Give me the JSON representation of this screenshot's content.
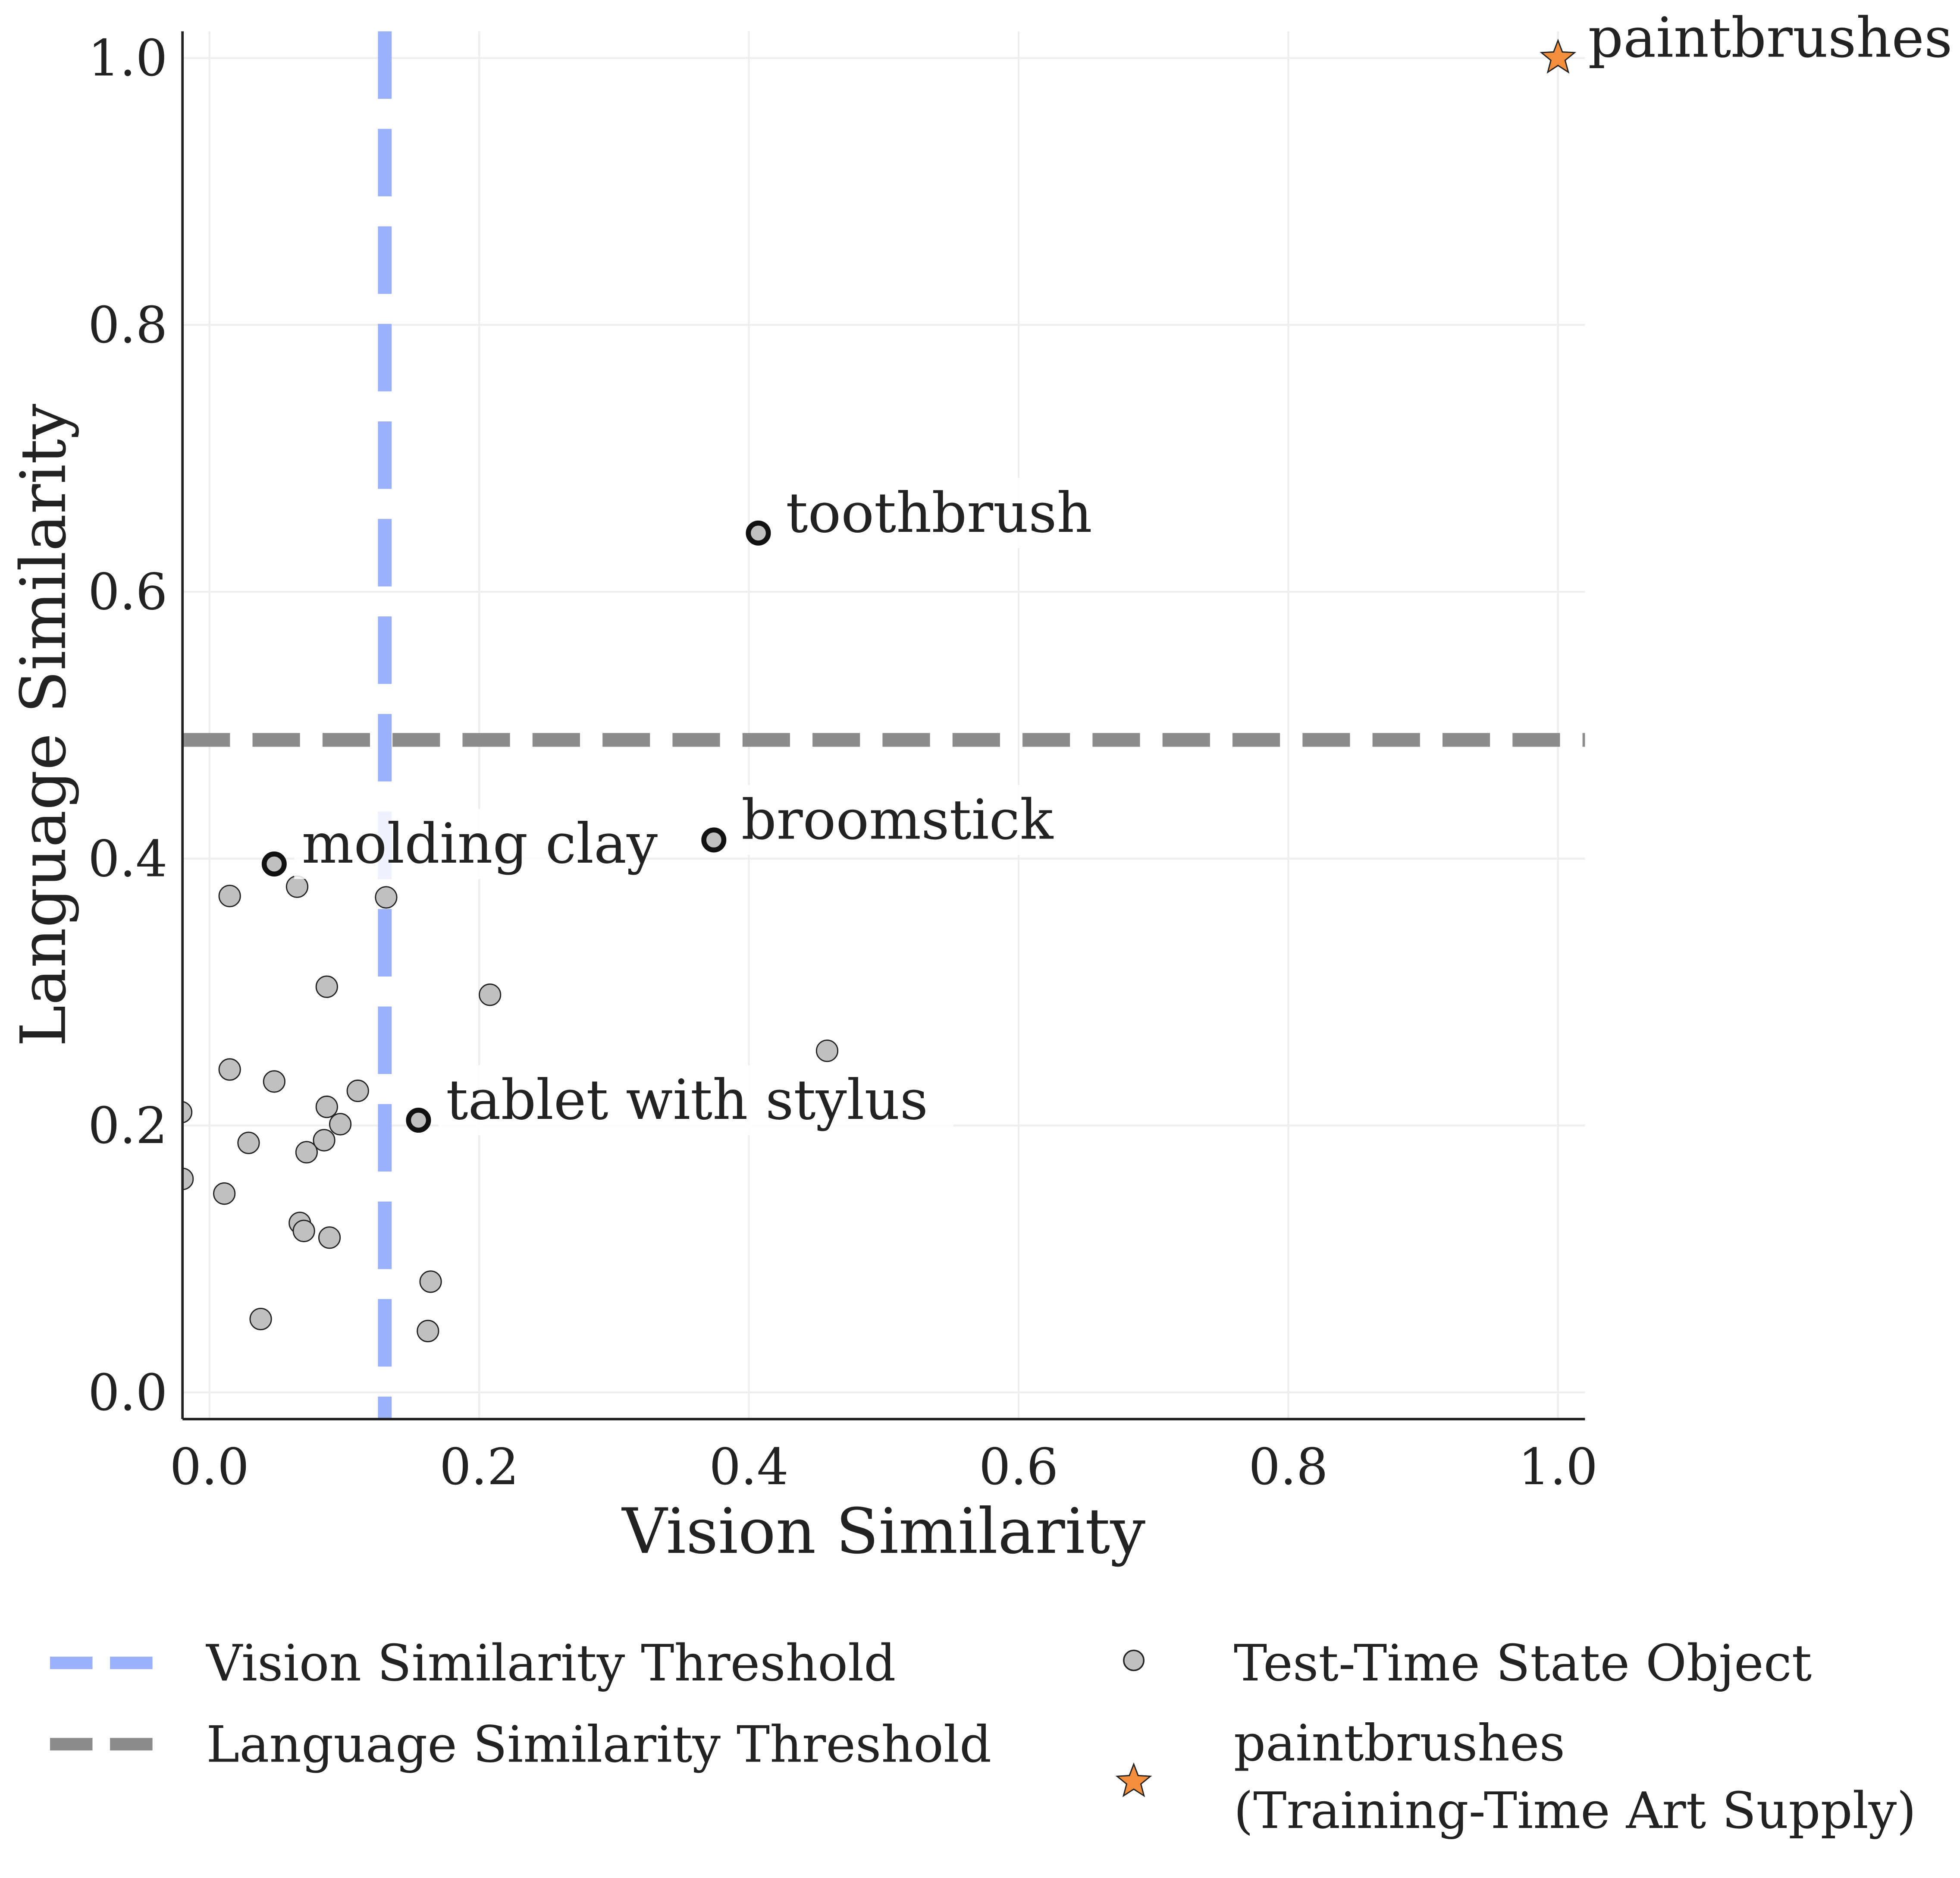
{
  "chart_data": {
    "type": "scatter",
    "title": "",
    "xlabel": "Vision Similarity",
    "ylabel": "Language Similarity",
    "xlim": [
      -0.02,
      1.02
    ],
    "ylim": [
      -0.02,
      1.02
    ],
    "xticks": [
      "0.0",
      "0.2",
      "0.4",
      "0.6",
      "0.8",
      "1.0"
    ],
    "yticks": [
      "0.0",
      "0.2",
      "0.4",
      "0.6",
      "0.8",
      "1.0"
    ],
    "grid": true,
    "legend_placement": "bottom",
    "thresholds": {
      "vision": {
        "name": "Vision Similarity Threshold",
        "value": 0.13,
        "color": "#9bb1fb"
      },
      "language": {
        "name": "Language Similarity Threshold",
        "value": 0.489,
        "color": "#8c8c8c"
      }
    },
    "series": [
      {
        "name": "Test-Time State Object",
        "color": "#c0c0c0",
        "points": [
          [
            0.065,
            0.379
          ],
          [
            0.015,
            0.372
          ],
          [
            0.131,
            0.371
          ],
          [
            0.087,
            0.304
          ],
          [
            0.208,
            0.298
          ],
          [
            0.458,
            0.256
          ],
          [
            0.015,
            0.242
          ],
          [
            0.048,
            0.233
          ],
          [
            0.11,
            0.226
          ],
          [
            0.087,
            0.214
          ],
          [
            0.097,
            0.201
          ],
          [
            0.085,
            0.189
          ],
          [
            0.029,
            0.187
          ],
          [
            0.072,
            0.18
          ],
          [
            -0.021,
            0.21
          ],
          [
            -0.02,
            0.16
          ],
          [
            0.011,
            0.149
          ],
          [
            0.067,
            0.127
          ],
          [
            0.07,
            0.121
          ],
          [
            0.089,
            0.116
          ],
          [
            0.164,
            0.083
          ],
          [
            0.038,
            0.055
          ],
          [
            0.162,
            0.046
          ]
        ]
      }
    ],
    "highlighted": [
      {
        "label": "toothbrush",
        "x": 0.407,
        "y": 0.644
      },
      {
        "label": "broomstick",
        "x": 0.374,
        "y": 0.414
      },
      {
        "label": "molding clay",
        "x": 0.048,
        "y": 0.396
      },
      {
        "label": "tablet with stylus",
        "x": 0.155,
        "y": 0.204
      }
    ],
    "reference": {
      "label": "paintbrushes",
      "x": 1.0,
      "y": 1.0,
      "color": "#f28e3c"
    },
    "legend": [
      "Vision Similarity Threshold",
      "Language Similarity Threshold",
      "Test-Time State Object",
      "paintbrushes",
      "(Training-Time Art Supply)"
    ]
  }
}
